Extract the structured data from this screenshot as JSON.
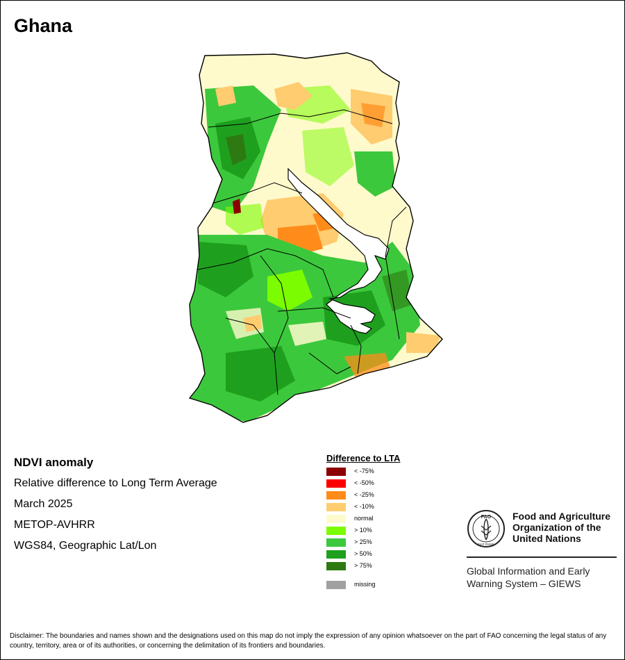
{
  "map": {
    "title": "Ghana",
    "info_lines": [
      "NDVI anomaly",
      "Relative difference to Long Term Average",
      "March 2025",
      "METOP-AVHRR",
      "WGS84, Geographic Lat/Lon"
    ],
    "legend": {
      "title": "Difference to LTA",
      "items": [
        {
          "label": "< -75%",
          "color": "#8b0000"
        },
        {
          "label": "< -50%",
          "color": "#ff0000"
        },
        {
          "label": "< -25%",
          "color": "#ff8c1a"
        },
        {
          "label": "< -10%",
          "color": "#ffcc70"
        },
        {
          "label": "normal",
          "color": "#fffacc"
        },
        {
          "label": "> 10%",
          "color": "#7cfc00"
        },
        {
          "label": "> 25%",
          "color": "#3cc83c"
        },
        {
          "label": "> 50%",
          "color": "#1ea01e"
        },
        {
          "label": "> 75%",
          "color": "#2d7a12"
        },
        {
          "label": "missing",
          "color": "#a0a0a0"
        }
      ]
    }
  },
  "org": {
    "name": "Food and Agriculture Organization of the United Nations",
    "emblem_text": "FAO",
    "emblem_motto": "FIAT PANIS",
    "system": "Global Information and Early Warning System – GIEWS"
  },
  "disclaimer": "Disclaimer: The boundaries and names shown and the designations used on this map do not imply the expression of any opinion whatsoever on the part of FAO concerning the legal status of any country, territory, area or of its authorities, or concerning the delimitation of its frontiers and boundaries."
}
